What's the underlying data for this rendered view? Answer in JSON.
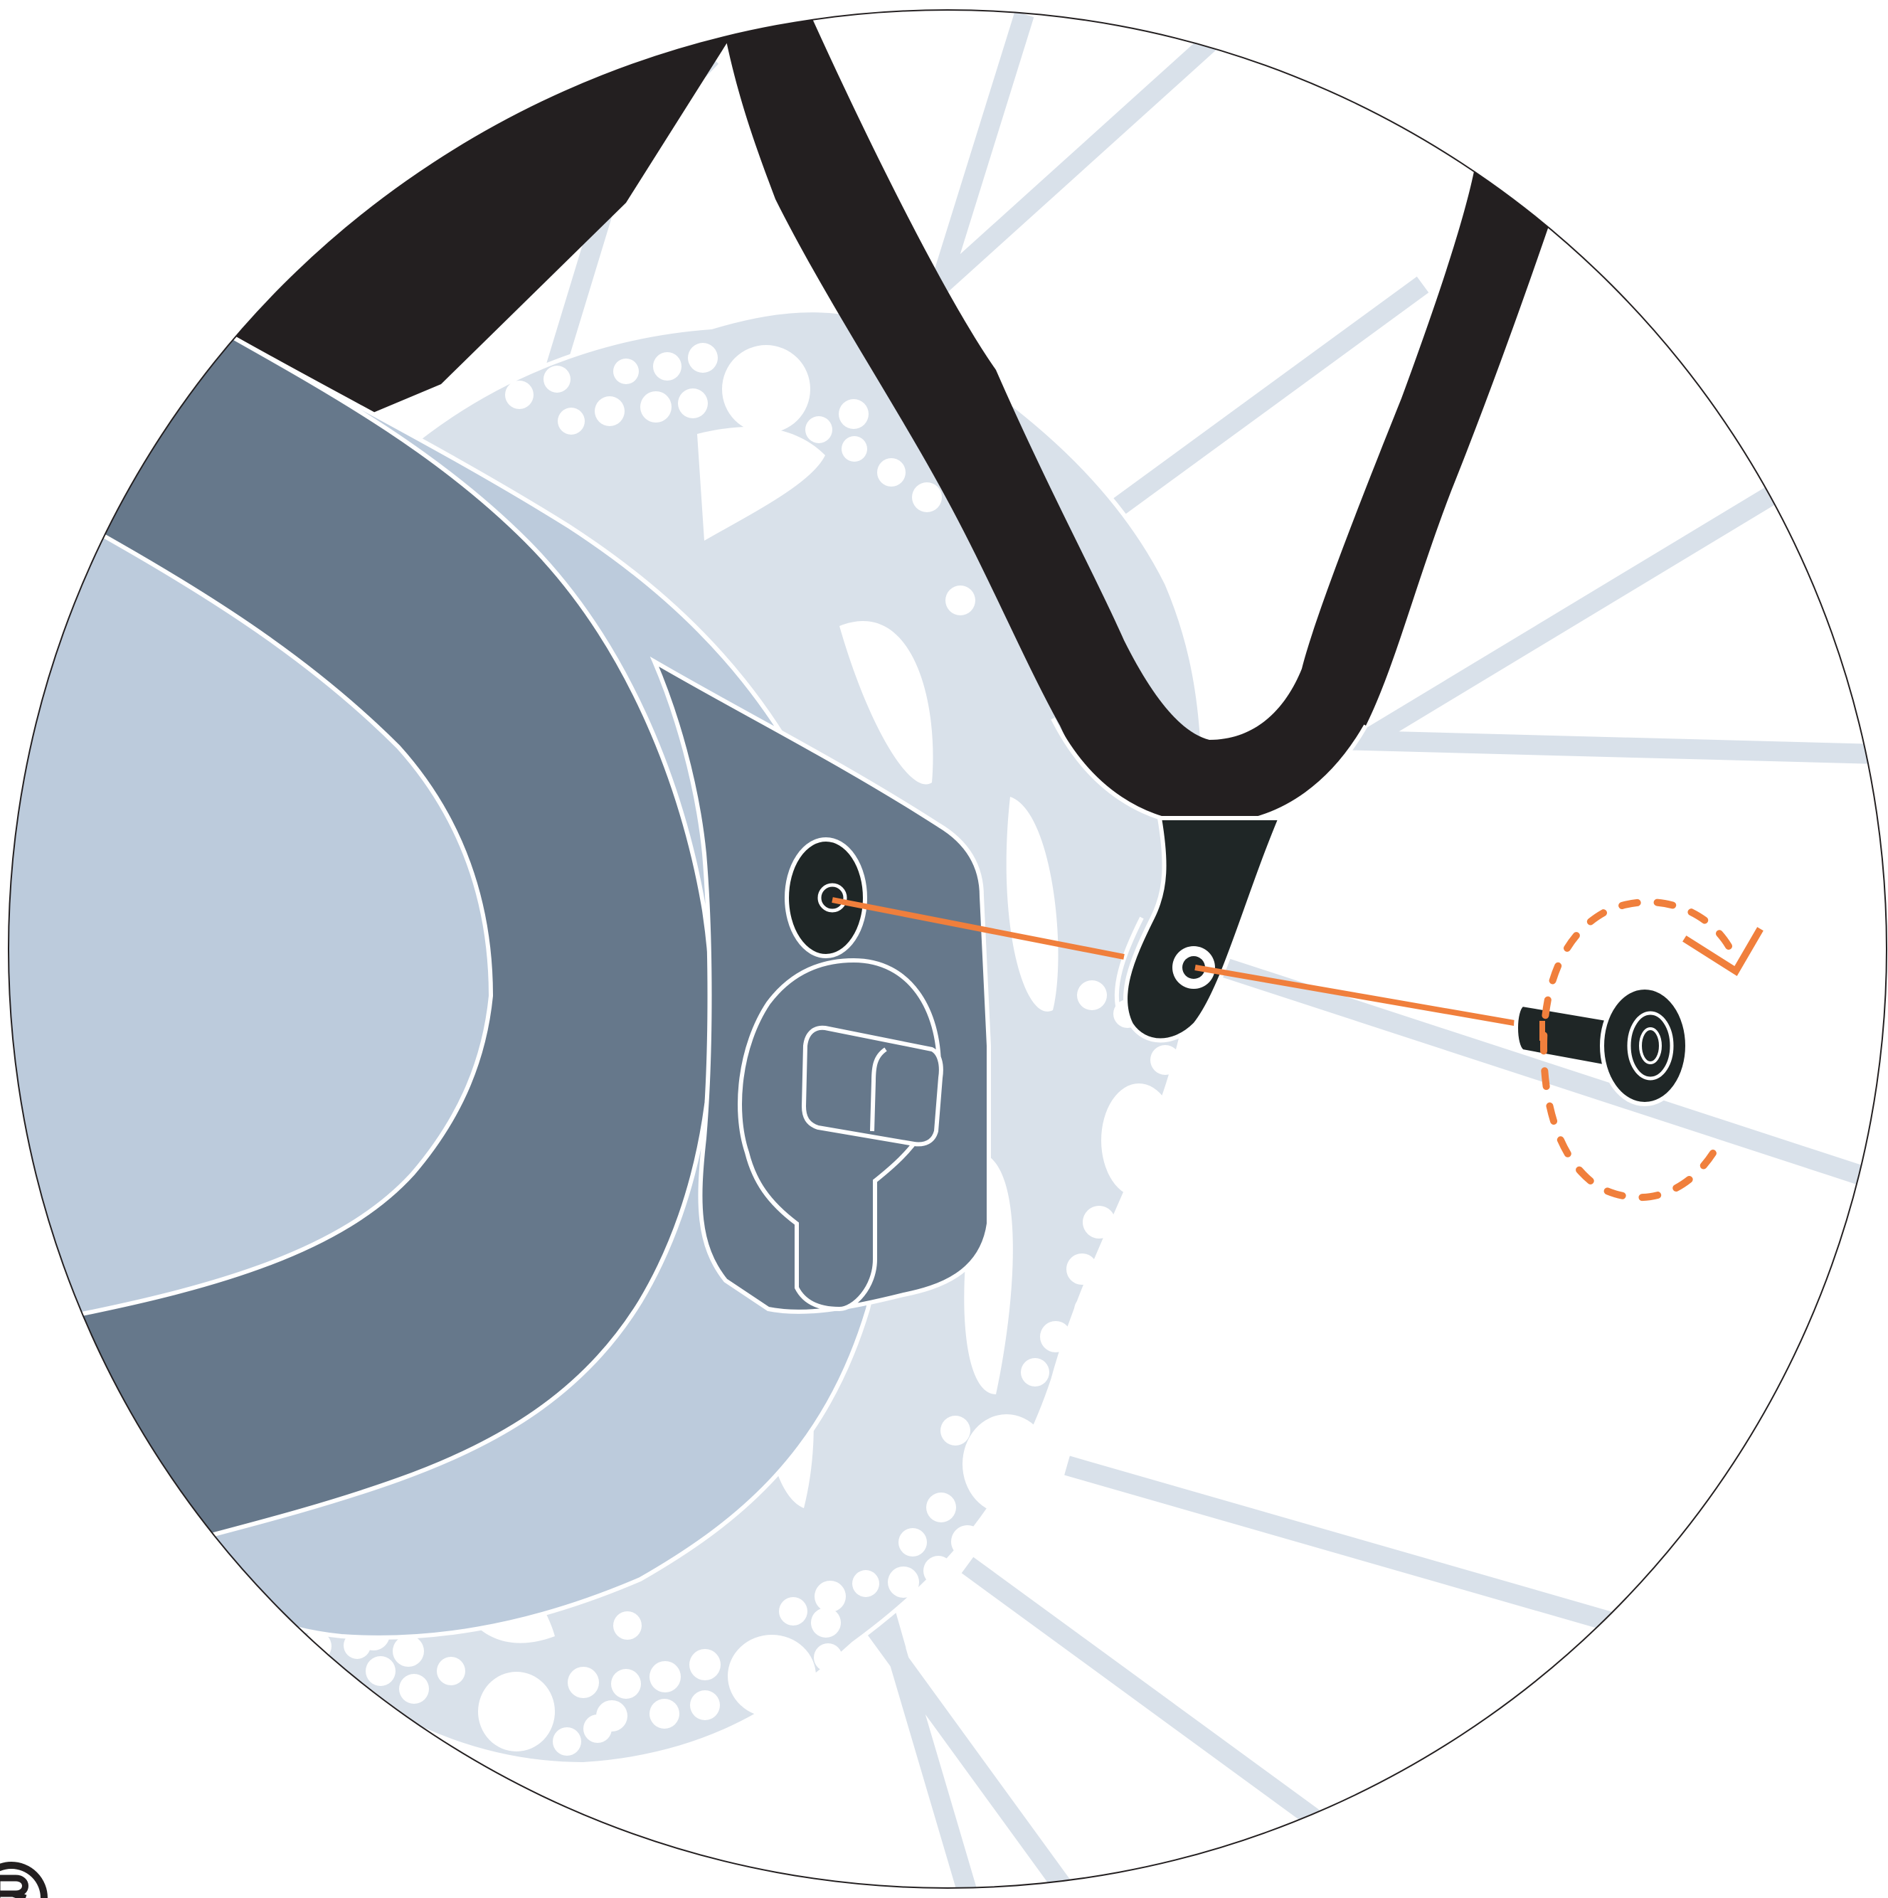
{
  "diagram": {
    "kind": "disc-brake-caliper-mounting-illustration",
    "colors": {
      "background": "#ffffff",
      "rotor_and_spokes": "#d9e1ea",
      "caliper_light": "#bccbdc",
      "caliper_dark": "#66788b",
      "frame": "#231f20",
      "bolt": "#1f2626",
      "accent": "#f07f3c",
      "outline": "#ffffff"
    },
    "icons": [
      "tighten-rotation-arrow-icon",
      "mounting-bolt-icon"
    ]
  }
}
